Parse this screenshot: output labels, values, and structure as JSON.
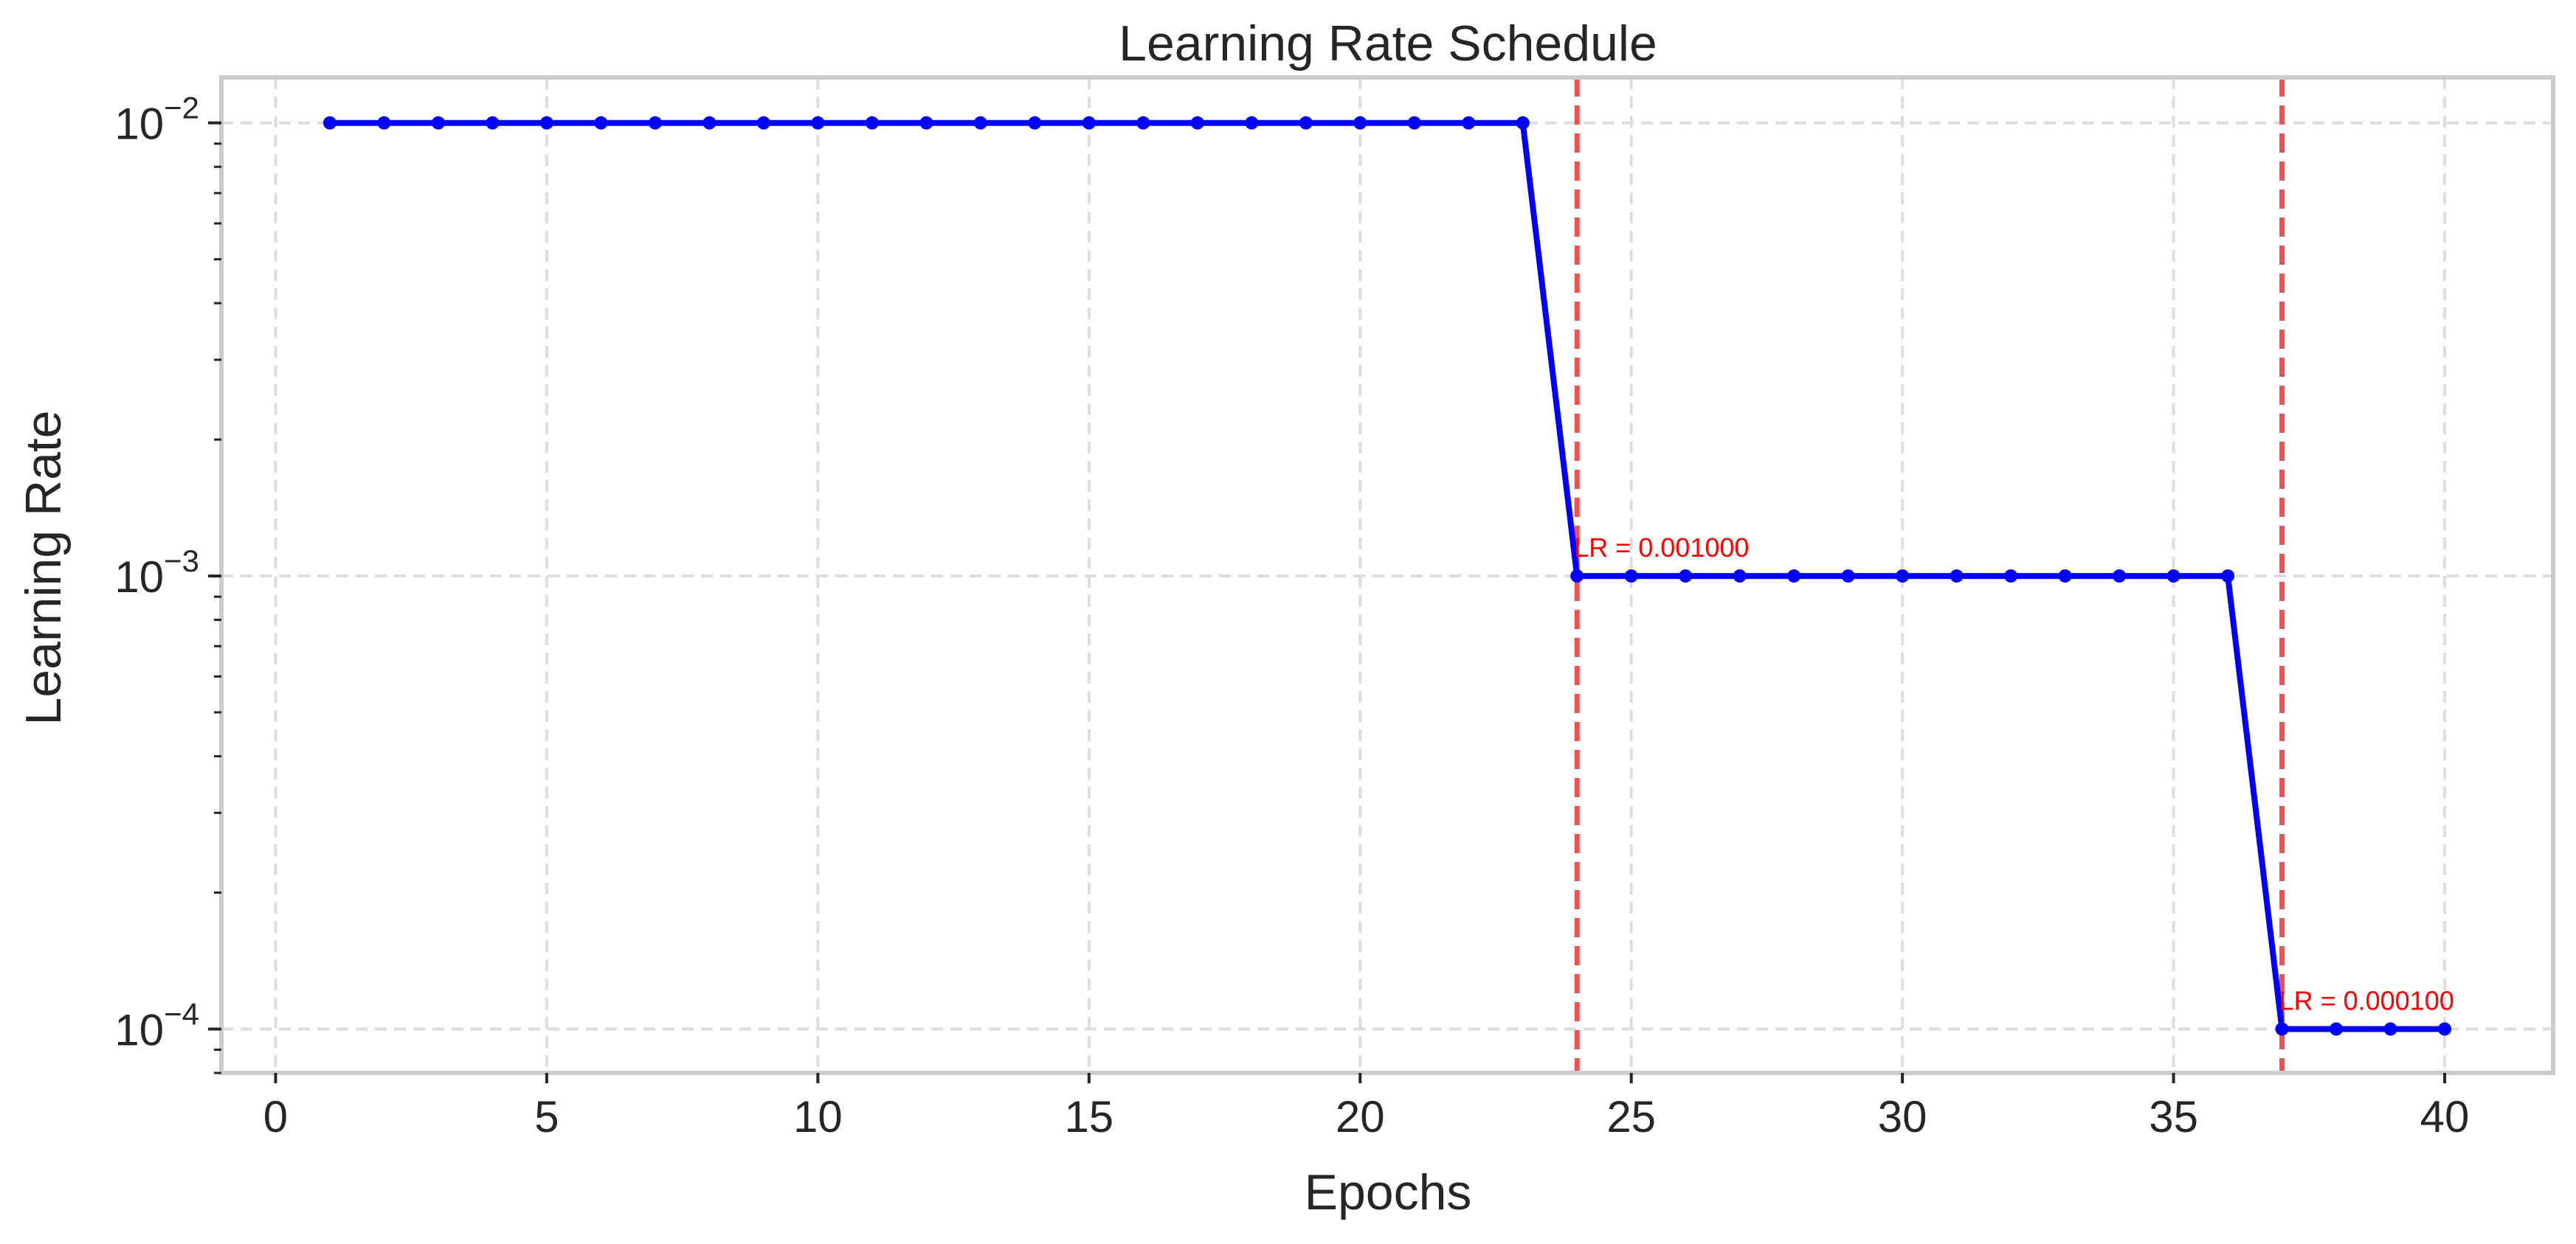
{
  "chart_data": {
    "type": "line",
    "title": "Learning Rate Schedule",
    "xlabel": "Epochs",
    "ylabel": "Learning Rate",
    "yscale": "log",
    "xlim": [
      -1,
      42
    ],
    "ylim": [
      8e-05,
      0.0126
    ],
    "x_ticks": [
      0,
      5,
      10,
      15,
      20,
      25,
      30,
      35,
      40
    ],
    "y_ticks": [
      {
        "value": 0.01,
        "base": "10",
        "exponent": "−2"
      },
      {
        "value": 0.001,
        "base": "10",
        "exponent": "−3"
      },
      {
        "value": 0.0001,
        "base": "10",
        "exponent": "−4"
      }
    ],
    "grid": true,
    "series": [
      {
        "color": "#0000ff",
        "marker": "circle",
        "x": [
          1,
          2,
          3,
          4,
          5,
          6,
          7,
          8,
          9,
          10,
          11,
          12,
          13,
          14,
          15,
          16,
          17,
          18,
          19,
          20,
          21,
          22,
          23,
          24,
          25,
          26,
          27,
          28,
          29,
          30,
          31,
          32,
          33,
          34,
          35,
          36,
          37,
          38,
          39,
          40
        ],
        "y": [
          0.01,
          0.01,
          0.01,
          0.01,
          0.01,
          0.01,
          0.01,
          0.01,
          0.01,
          0.01,
          0.01,
          0.01,
          0.01,
          0.01,
          0.01,
          0.01,
          0.01,
          0.01,
          0.01,
          0.01,
          0.01,
          0.01,
          0.01,
          0.001,
          0.001,
          0.001,
          0.001,
          0.001,
          0.001,
          0.001,
          0.001,
          0.001,
          0.001,
          0.001,
          0.001,
          0.001,
          0.0001,
          0.0001,
          0.0001,
          0.0001
        ]
      }
    ],
    "vlines": [
      {
        "x": 24,
        "color": "#f05050",
        "style": "dashed"
      },
      {
        "x": 37,
        "color": "#f05050",
        "style": "dashed"
      }
    ],
    "annotations": [
      {
        "x": 24,
        "y": 0.001,
        "text": "LR = 0.001000",
        "color": "#ff0000"
      },
      {
        "x": 37,
        "y": 0.0001,
        "text": "LR = 0.000100",
        "color": "#ff0000"
      }
    ],
    "colors": {
      "line": "#0000ff",
      "vline": "#f05050",
      "annotation": "#ff0000",
      "grid": "#dddddd",
      "frame": "#cccccc",
      "text": "#262626"
    }
  }
}
